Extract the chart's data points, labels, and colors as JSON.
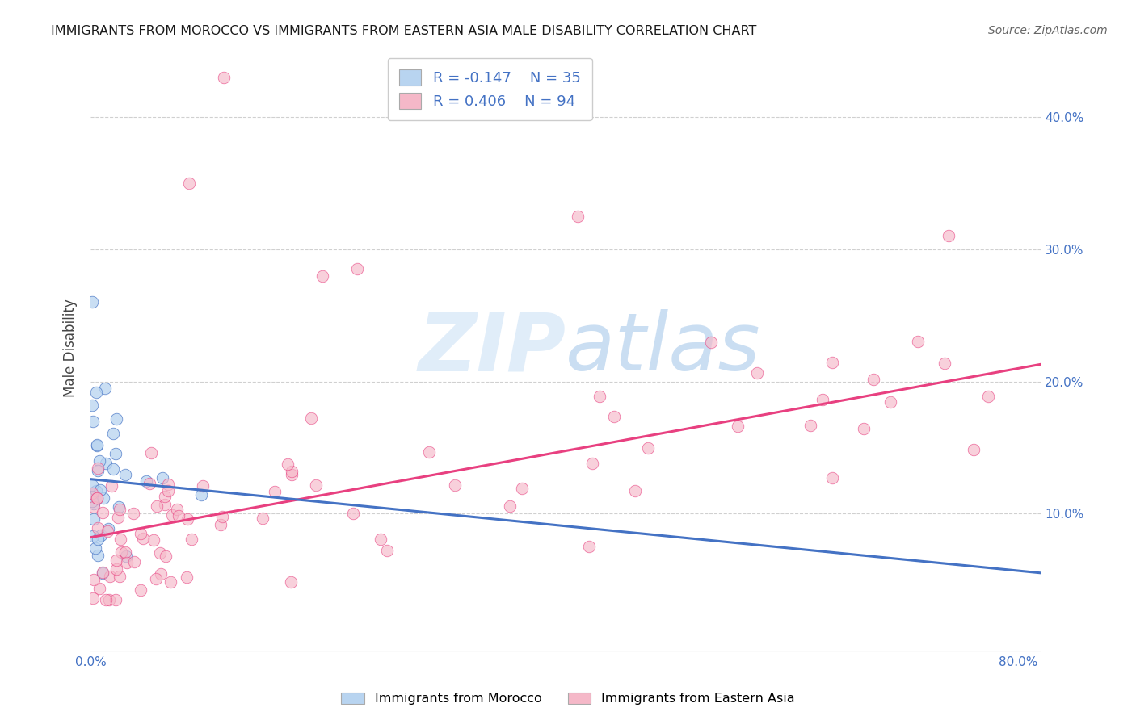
{
  "title": "IMMIGRANTS FROM MOROCCO VS IMMIGRANTS FROM EASTERN ASIA MALE DISABILITY CORRELATION CHART",
  "source": "Source: ZipAtlas.com",
  "ylabel": "Male Disability",
  "xlim": [
    0.0,
    0.82
  ],
  "ylim": [
    -0.005,
    0.455
  ],
  "yticks": [
    0.1,
    0.2,
    0.3,
    0.4
  ],
  "ytick_labels": [
    "10.0%",
    "20.0%",
    "30.0%",
    "40.0%"
  ],
  "xticks": [
    0.0,
    0.1,
    0.2,
    0.3,
    0.4,
    0.5,
    0.6,
    0.7,
    0.8
  ],
  "xtick_labels": [
    "0.0%",
    "",
    "",
    "",
    "",
    "",
    "",
    "",
    "80.0%"
  ],
  "watermark_zip": "ZIP",
  "watermark_atlas": "atlas",
  "legend_label1": "R = -0.147    N = 35",
  "legend_label2": "R = 0.406    N = 94",
  "color_morocco": "#b8d4f0",
  "color_eastern_asia": "#f5b8c8",
  "color_line_morocco": "#4472c4",
  "color_line_eastern_asia": "#e84080",
  "background_color": "#ffffff",
  "grid_color": "#d0d0d0",
  "label_morocco": "Immigrants from Morocco",
  "label_eastern_asia": "Immigrants from Eastern Asia",
  "morocco_line_x0": 0.0,
  "morocco_line_y0": 0.126,
  "morocco_line_x1": 0.82,
  "morocco_line_y1": 0.055,
  "ea_line_x0": 0.0,
  "ea_line_y0": 0.082,
  "ea_line_x1": 0.82,
  "ea_line_y1": 0.213
}
